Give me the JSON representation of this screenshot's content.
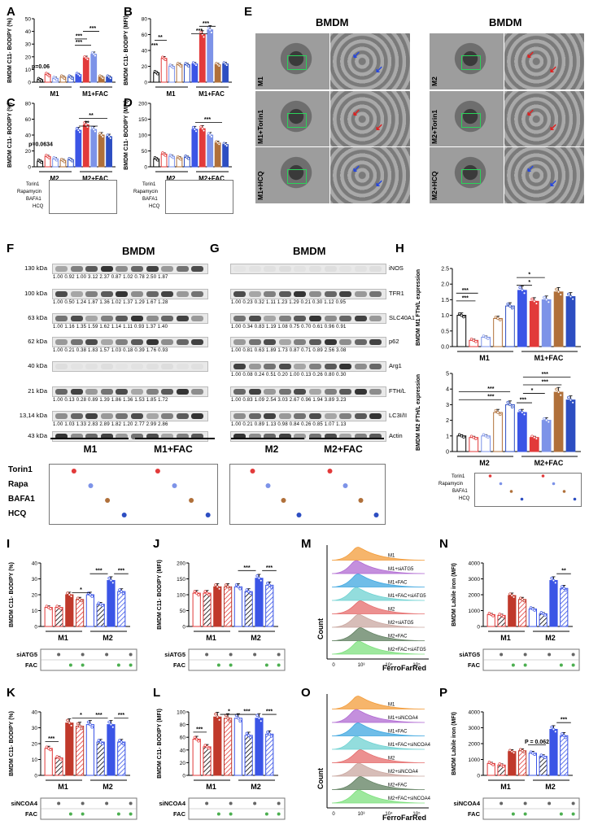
{
  "panels": {
    "A": {
      "letter": "A",
      "ylabel": "BMDM C11- BODIPY (%)",
      "yticks": [
        "0",
        "10",
        "20",
        "30",
        "40",
        "50"
      ],
      "groups": [
        "M1",
        "M1+FAC"
      ],
      "annot": [
        "p=0.06",
        "***",
        "***",
        "***"
      ]
    },
    "B": {
      "letter": "B",
      "ylabel": "BMDM C11- BODIPY (MFI)",
      "yticks": [
        "0",
        "20",
        "40",
        "60",
        "80"
      ],
      "groups": [
        "M1",
        "M1+FAC"
      ],
      "annot": [
        "***",
        "**",
        "***",
        "***"
      ]
    },
    "C": {
      "letter": "C",
      "ylabel": "BMDM C11- BODIPY (%)",
      "yticks": [
        "0",
        "20",
        "40",
        "60",
        "80"
      ],
      "groups": [
        "M2",
        "M2+FAC"
      ],
      "annot": [
        "p=0.0634",
        "**",
        "**"
      ]
    },
    "D": {
      "letter": "D",
      "ylabel": "BMDM C11- BODIPY (MFI)",
      "yticks": [
        "0",
        "50",
        "100",
        "150",
        "200"
      ],
      "groups": [
        "M2",
        "M2+FAC"
      ],
      "annot": [
        "***"
      ]
    },
    "E": {
      "letter": "E",
      "title_left": "BMDM",
      "title_right": "BMDM",
      "rows_left": [
        "M1",
        "M1+Torin1",
        "M1+HCQ"
      ],
      "rows_right": [
        "M2",
        "M2+Torin1",
        "M2+HCQ"
      ]
    },
    "F": {
      "letter": "F",
      "title": "BMDM",
      "kda": [
        "130 kDa",
        "100 kDa",
        "63 kDa",
        "62 kDa",
        "40 kDa",
        "21 kDa",
        "13,14 kDa",
        "43 kDa"
      ],
      "values": [
        "1.00   0.92   1.00   3.12   2.37   0.87   1.02   0.78   2.50   1.87",
        "1.00   0.50   1.24   1.87   1.36   1.02   1.37   1.29   1.67   1.28",
        "1.00   1.16   1.35   1.59   1.62   1.14   1.11   0.93   1.37   1.40",
        "1.00   0.21   0.38   1.83   1.57   1.03   0.18   0.39   1.76   0.93",
        "",
        "1.00   0.13   0.28   0.89   1.39   1.86   1.36   1.53   1.85   1.72",
        "1.00   1.03   1.33   2.83   2.89   1.82   1.20   2.77   2.99   2.86",
        ""
      ],
      "groups": [
        "M1",
        "M1+FAC"
      ],
      "treat": [
        "Torin1",
        "Rapa",
        "BAFA1",
        "HCQ"
      ]
    },
    "G": {
      "letter": "G",
      "title": "BMDM",
      "proteins": [
        "iNOS",
        "TFR1",
        "SLC40A1",
        "p62",
        "Arg1",
        "FTH/L",
        "LC3I/II",
        "Actin"
      ],
      "values": [
        "",
        "1.00   0.23   0.32   1.11   1.23   1.29   0.21   0.30   1.12   0.95",
        "1.00   0.34   0.83   1.19   1.08   0.75   0.70   0.61   0.96   0.91",
        "1.00   0.81   0.63   1.89   1.73   0.87   0.71   0.89   2.56   3.08",
        "1.00   0.08   0.24   0.51   0.20   1.00   0.13   0.26   0.80   0.30",
        "1.00   0.83   1.09   2.54   3.03   2.67   0.96   1.94   3.89   3.23",
        "1.00   0.21   0.89   1.13   0.98   0.84   0.26   0.85   1.07   1.13",
        ""
      ],
      "groups": [
        "M2",
        "M2+FAC"
      ]
    },
    "H": {
      "letter": "H",
      "top": {
        "ylabel": "BMDM M1 FTH/L expression",
        "yticks": [
          "0.0",
          "0.5",
          "1.0",
          "1.5",
          "2.0",
          "2.5"
        ],
        "groups": [
          "M1",
          "M1+FAC"
        ],
        "annot": [
          "***",
          "***",
          "*",
          "*"
        ]
      },
      "bottom": {
        "ylabel": "BMDM M2 FTH/L expression",
        "yticks": [
          "0",
          "1",
          "2",
          "3",
          "4",
          "5"
        ],
        "groups": [
          "M2",
          "M2+FAC"
        ],
        "annot": [
          "***",
          "***",
          "***",
          "***",
          "*",
          "***"
        ]
      },
      "treat": [
        "Torin1",
        "Rapamycin",
        "BAFA1",
        "HCQ"
      ]
    },
    "I": {
      "letter": "I",
      "ylabel": "BMDM C11- BODIPY (%)",
      "yticks": [
        "0",
        "10",
        "20",
        "30",
        "40"
      ],
      "groups": [
        "M1",
        "M2"
      ],
      "annot": [
        "*",
        "***",
        "***"
      ],
      "rows": [
        "siATG5",
        "FAC"
      ]
    },
    "J": {
      "letter": "J",
      "ylabel": "BMDM C11- BODIPY (MFI)",
      "yticks": [
        "0",
        "50",
        "100",
        "150",
        "200"
      ],
      "groups": [
        "M1",
        "M2"
      ],
      "annot": [
        "***",
        "***"
      ],
      "rows": [
        "siATG5",
        "FAC"
      ]
    },
    "M": {
      "letter": "M",
      "ylabel": "Count",
      "xlabel": "FerroFarRed",
      "legend": [
        "M1",
        "M1+siATG5",
        "M1+FAC",
        "M1+FAC+siATG5",
        "M2",
        "M2+siATG5",
        "M2+FAC",
        "M2+FAC+siATG5"
      ],
      "xticks": [
        "0",
        "10³",
        "10⁴",
        "10⁵"
      ]
    },
    "N": {
      "letter": "N",
      "ylabel": "BMDM Labile iron (MFI)",
      "yticks": [
        "0",
        "1000",
        "2000",
        "3000",
        "4000"
      ],
      "groups": [
        "M1",
        "M2"
      ],
      "annot": [
        "**"
      ],
      "rows": [
        "siATG5",
        "FAC"
      ]
    },
    "K": {
      "letter": "K",
      "ylabel": "BMDM C11- BODIPY (%)",
      "yticks": [
        "0",
        "10",
        "20",
        "30",
        "40"
      ],
      "groups": [
        "M1",
        "M2"
      ],
      "annot": [
        "***",
        "*",
        "***",
        "***"
      ],
      "rows": [
        "siNCOA4",
        "FAC"
      ]
    },
    "L": {
      "letter": "L",
      "ylabel": "BMDM C11- BODIPY (MFI)",
      "yticks": [
        "0",
        "20",
        "40",
        "60",
        "80",
        "100"
      ],
      "groups": [
        "M1",
        "M2"
      ],
      "annot": [
        "***",
        "*",
        "***",
        "***"
      ],
      "rows": [
        "siNCOA4",
        "FAC"
      ]
    },
    "O": {
      "letter": "O",
      "ylabel": "Count",
      "xlabel": "FerroFarRed",
      "legend": [
        "M1",
        "M1+siNCOA4",
        "M1+FAC",
        "M1+FAC+siNCOA4",
        "M2",
        "M2+siNCOA4",
        "M2+FAC",
        "M2+FAC+siNCOA4"
      ],
      "xticks": [
        "0",
        "10³",
        "10⁴",
        "10⁵"
      ]
    },
    "P": {
      "letter": "P",
      "ylabel": "BMDM Labile iron (MFI)",
      "yticks": [
        "0",
        "1000",
        "2000",
        "3000",
        "4000"
      ],
      "groups": [
        "M1",
        "M2"
      ],
      "annot": [
        "P = 0.062",
        "***"
      ],
      "rows": [
        "siNCOA4",
        "FAC"
      ]
    }
  },
  "treat_small": [
    "Torin1",
    "Rapamycin",
    "BAFA1",
    "HCQ"
  ],
  "chart_data": [
    {
      "type": "bar",
      "panel": "A",
      "categories": [
        "M1",
        "M1+Torin1",
        "M1+Rapa",
        "M1+BAFA1",
        "M1+HCQ",
        "M1+FAC",
        "M1+FAC+Torin1",
        "M1+FAC+Rapa",
        "M1+FAC+BAFA1",
        "M1+FAC+HCQ"
      ],
      "values": [
        2,
        6,
        3,
        4,
        4,
        6,
        19,
        22,
        4,
        4
      ],
      "ylim": [
        0,
        50
      ]
    },
    {
      "type": "bar",
      "panel": "B",
      "categories": [
        "M1",
        "M1+Torin1",
        "M1+Rapa",
        "M1+BAFA1",
        "M1+HCQ",
        "M1+FAC",
        "M1+FAC+Torin1",
        "M1+FAC+Rapa",
        "M1+FAC+BAFA1",
        "M1+FAC+HCQ"
      ],
      "values": [
        12,
        30,
        20,
        22,
        22,
        23,
        60,
        66,
        22,
        23
      ],
      "ylim": [
        0,
        80
      ]
    },
    {
      "type": "bar",
      "panel": "C",
      "categories": [
        "M2",
        "M2+Torin1",
        "M2+Rapa",
        "M2+BAFA1",
        "M2+HCQ",
        "M2+FAC",
        "M2+FAC+Torin1",
        "M2+FAC+Rapa",
        "M2+FAC+BAFA1",
        "M2+FAC+HCQ"
      ],
      "values": [
        7,
        13,
        10,
        8,
        9,
        46,
        53,
        47,
        40,
        38
      ],
      "ylim": [
        0,
        80
      ]
    },
    {
      "type": "bar",
      "panel": "D",
      "categories": [
        "M2",
        "M2+Torin1",
        "M2+Rapa",
        "M2+BAFA1",
        "M2+HCQ",
        "M2+FAC",
        "M2+FAC+Torin1",
        "M2+FAC+Rapa",
        "M2+FAC+BAFA1",
        "M2+FAC+HCQ"
      ],
      "values": [
        25,
        40,
        33,
        28,
        30,
        118,
        120,
        100,
        75,
        70
      ],
      "ylim": [
        0,
        200
      ]
    },
    {
      "type": "bar",
      "panel": "H-top",
      "categories": [
        "M1",
        "M1+Torin1",
        "M1+Rapa",
        "M1+BAFA1",
        "M1+HCQ",
        "M1+FAC",
        "M1+FAC+Torin1",
        "M1+FAC+Rapa",
        "M1+FAC+BAFA1",
        "M1+FAC+HCQ"
      ],
      "values": [
        1.0,
        0.2,
        0.3,
        0.9,
        1.3,
        1.8,
        1.45,
        1.5,
        1.75,
        1.6
      ],
      "ylim": [
        0,
        2.5
      ]
    },
    {
      "type": "bar",
      "panel": "H-bottom",
      "categories": [
        "M2",
        "M2+Torin1",
        "M2+Rapa",
        "M2+BAFA1",
        "M2+HCQ",
        "M2+FAC",
        "M2+FAC+Torin1",
        "M2+FAC+Rapa",
        "M2+FAC+BAFA1",
        "M2+FAC+HCQ"
      ],
      "values": [
        1.0,
        0.9,
        1.0,
        2.5,
        3.0,
        2.5,
        0.9,
        2.0,
        3.8,
        3.3
      ],
      "ylim": [
        0,
        5
      ]
    },
    {
      "type": "bar",
      "panel": "I",
      "categories": [
        "M1",
        "M1+siATG5",
        "M1+FAC",
        "M1+FAC+siATG5",
        "M2",
        "M2+siATG5",
        "M2+FAC",
        "M2+FAC+siATG5"
      ],
      "values": [
        12,
        12,
        20,
        17,
        20,
        14,
        29,
        22
      ],
      "ylim": [
        0,
        40
      ]
    },
    {
      "type": "bar",
      "panel": "J",
      "categories": [
        "M1",
        "M1+siATG5",
        "M1+FAC",
        "M1+FAC+siATG5",
        "M2",
        "M2+siATG5",
        "M2+FAC",
        "M2+FAC+siATG5"
      ],
      "values": [
        105,
        105,
        125,
        125,
        125,
        110,
        152,
        130
      ],
      "ylim": [
        0,
        200
      ]
    },
    {
      "type": "bar",
      "panel": "N",
      "categories": [
        "M1",
        "M1+siATG5",
        "M1+FAC",
        "M1+FAC+siATG5",
        "M2",
        "M2+siATG5",
        "M2+FAC",
        "M2+FAC+siATG5"
      ],
      "values": [
        750,
        700,
        1950,
        1700,
        1100,
        800,
        2900,
        2400
      ],
      "ylim": [
        0,
        4000
      ]
    },
    {
      "type": "bar",
      "panel": "K",
      "categories": [
        "M1",
        "M1+siNCOA4",
        "M1+FAC",
        "M1+FAC+siNCOA4",
        "M2",
        "M2+siNCOA4",
        "M2+FAC",
        "M2+FAC+siNCOA4"
      ],
      "values": [
        17,
        11,
        33,
        31,
        32,
        21,
        32,
        21
      ],
      "ylim": [
        0,
        40
      ]
    },
    {
      "type": "bar",
      "panel": "L",
      "categories": [
        "M1",
        "M1+siNCOA4",
        "M1+FAC",
        "M1+FAC+siNCOA4",
        "M2",
        "M2+siNCOA4",
        "M2+FAC",
        "M2+FAC+siNCOA4"
      ],
      "values": [
        57,
        45,
        92,
        90,
        90,
        63,
        90,
        65
      ],
      "ylim": [
        0,
        100
      ]
    },
    {
      "type": "bar",
      "panel": "P",
      "categories": [
        "M1",
        "M1+siNCOA4",
        "M1+FAC",
        "M1+FAC+siNCOA4",
        "M2",
        "M2+siNCOA4",
        "M2+FAC",
        "M2+FAC+siNCOA4"
      ],
      "values": [
        750,
        650,
        1500,
        1550,
        1400,
        1200,
        2900,
        2500
      ],
      "ylim": [
        0,
        4000
      ]
    }
  ],
  "colors": {
    "red": "#e23a3a",
    "blue": "#3b55e6",
    "lightblue": "#7d93e8",
    "brown": "#b0703a",
    "navy": "#2d4ec2",
    "pink": "#e45ea6"
  }
}
